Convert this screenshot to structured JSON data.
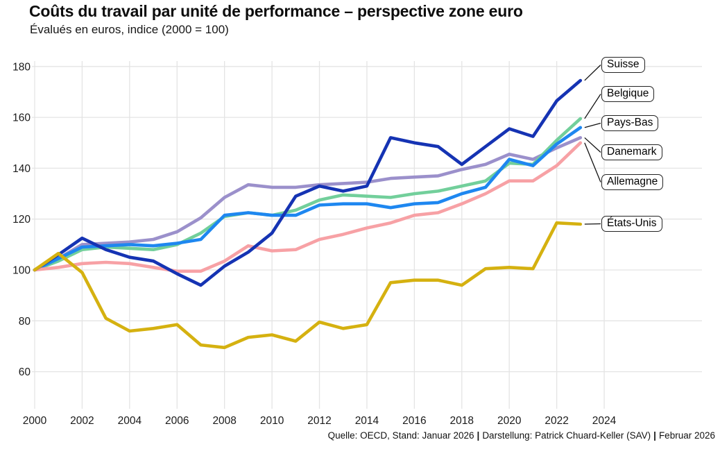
{
  "header": {
    "title": "Coûts du travail par unité de performance – perspective zone euro",
    "subtitle": "Évalués en euros, indice (2000 = 100)"
  },
  "footer": {
    "part1": "Quelle: OECD, Stand: Januar 2026",
    "separator": "|",
    "part2": "Darstellung: Patrick Chuard-Keller (SAV)",
    "part3": "Februar 2026"
  },
  "chart_data": {
    "type": "line",
    "title": "Coûts du travail par unité de performance – perspective zone euro",
    "subtitle": "Évalués en euros, indice (2000 = 100)",
    "x": [
      2000,
      2001,
      2002,
      2003,
      2004,
      2005,
      2006,
      2007,
      2008,
      2009,
      2010,
      2011,
      2012,
      2013,
      2014,
      2015,
      2016,
      2017,
      2018,
      2019,
      2020,
      2021,
      2022,
      2023
    ],
    "x_ticks": [
      2000,
      2002,
      2004,
      2006,
      2008,
      2010,
      2012,
      2014,
      2016,
      2018,
      2020,
      2022,
      2024
    ],
    "y_ticks": [
      60,
      80,
      100,
      120,
      140,
      160,
      180
    ],
    "ylim": [
      52,
      186
    ],
    "grid": true,
    "legend_position": "right-labels",
    "grid_color": "#e4e4e4",
    "series": [
      {
        "id": "danemark",
        "name": "Danemark",
        "color": "#9b90cb",
        "values": [
          100,
          104.5,
          110,
          110.5,
          111,
          112,
          115,
          120.5,
          128.5,
          133.5,
          132.5,
          132.5,
          133.5,
          134,
          134.5,
          136,
          136.5,
          137,
          139.5,
          141.5,
          145.5,
          143.5,
          148,
          152
        ]
      },
      {
        "id": "belgique",
        "name": "Belgique",
        "color": "#72cf9b",
        "values": [
          100,
          103.5,
          108,
          109,
          108.5,
          108,
          110,
          114.5,
          121,
          122.5,
          121.5,
          123.5,
          127.5,
          129.5,
          129,
          128.5,
          130,
          131,
          133,
          135,
          142,
          141.5,
          151,
          159.5
        ]
      },
      {
        "id": "pays_bas",
        "name": "Pays-Bas",
        "color": "#1e87f0",
        "values": [
          100,
          104.5,
          109,
          109.5,
          110,
          109.5,
          110.5,
          112,
          121.5,
          122.5,
          121.5,
          121.5,
          125.5,
          126,
          126,
          124.5,
          126,
          126.5,
          130,
          132.5,
          143.5,
          141,
          149.5,
          156
        ]
      },
      {
        "id": "allemagne",
        "name": "Allemagne",
        "color": "#f7a1a5",
        "values": [
          100,
          101,
          102.5,
          103,
          102.5,
          101,
          99.5,
          99.5,
          103.5,
          109.5,
          107.5,
          108,
          112,
          114,
          116.5,
          118.5,
          121.5,
          122.5,
          126,
          130,
          135,
          135,
          141,
          150
        ]
      },
      {
        "id": "suisse",
        "name": "Suisse",
        "color": "#1533b3",
        "values": [
          100,
          106,
          112.5,
          108,
          105,
          103.5,
          98.5,
          94,
          101.5,
          107,
          114.5,
          129,
          133,
          131,
          133,
          152,
          150,
          148.5,
          141.5,
          148.5,
          155.5,
          152.5,
          166.5,
          174.5
        ]
      },
      {
        "id": "etats_unis",
        "name": "États-Unis",
        "color": "#d5b110",
        "values": [
          100,
          106.5,
          99,
          81,
          76,
          77,
          78.5,
          70.5,
          69.5,
          73.5,
          74.5,
          72,
          79.5,
          77,
          78.5,
          95,
          96,
          96,
          94,
          100.5,
          101,
          100.5,
          118.5,
          118
        ]
      }
    ]
  }
}
